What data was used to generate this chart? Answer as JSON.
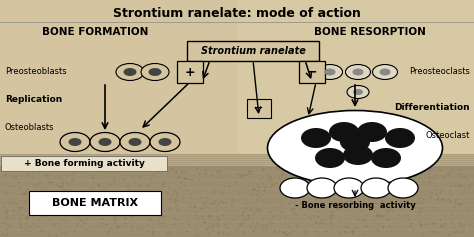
{
  "title": "Strontium ranelate: mode of action",
  "bg_color": "#d4c5a0",
  "bg_right_color": "#e8d9b5",
  "bone_matrix_color": "#9a8c6e",
  "bone_strip_color": "#c0b088",
  "title_fontsize": 9,
  "left_heading": "BONE FORMATION",
  "right_heading": "BONE RESORPTION",
  "center_label": "Strontium ranelate",
  "bone_matrix_label": "BONE MATRIX",
  "plus_bone_label": "+ Bone forming activity",
  "minus_bone_label": "- Bone resorbing  activity",
  "left_labels": [
    "Preosteoblasts",
    "Replication",
    "Osteoblasts"
  ],
  "right_labels": [
    "Preosteoclasts",
    "Differentiation",
    "Osteoclast"
  ]
}
